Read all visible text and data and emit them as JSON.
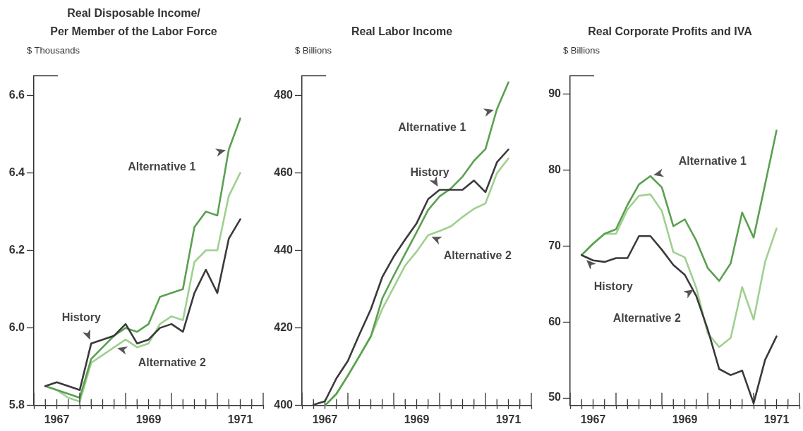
{
  "chart_data": [
    {
      "type": "line",
      "title": "Real Disposable Income/\nPer Member of the Labor Force",
      "ylabel": "$ Thousands",
      "x": [
        1967.25,
        1967.5,
        1967.75,
        1968,
        1968.25,
        1968.5,
        1968.75,
        1969,
        1969.25,
        1969.5,
        1969.75,
        1970,
        1970.25,
        1970.5,
        1970.75,
        1971,
        1971.25,
        1971.5
      ],
      "series": [
        {
          "name": "History",
          "color": "#3a3a3a",
          "values": [
            5.85,
            5.86,
            5.85,
            5.84,
            5.96,
            5.97,
            5.98,
            6.01,
            5.96,
            5.97,
            6.0,
            6.01,
            5.99,
            6.09,
            6.15,
            6.09,
            6.23,
            6.28
          ]
        },
        {
          "name": "Alternative 1",
          "color": "#5aa050",
          "values": [
            5.85,
            5.84,
            5.83,
            5.82,
            5.92,
            5.95,
            5.98,
            6.0,
            5.99,
            6.01,
            6.08,
            6.09,
            6.1,
            6.26,
            6.3,
            6.29,
            6.46,
            6.54
          ]
        },
        {
          "name": "Alternative 2",
          "color": "#9fd08f",
          "values": [
            5.85,
            5.84,
            5.82,
            5.81,
            5.91,
            5.93,
            5.95,
            5.97,
            5.95,
            5.96,
            6.01,
            6.03,
            6.02,
            6.17,
            6.2,
            6.2,
            6.34,
            6.4
          ]
        }
      ],
      "xlim": [
        1967,
        1972
      ],
      "xticks": [
        {
          "value": 1967,
          "label": null
        },
        {
          "value": 1967.25,
          "label": null
        },
        {
          "value": 1967.5,
          "label": "1967"
        },
        {
          "value": 1967.75,
          "label": null
        },
        {
          "value": 1968,
          "label": null
        },
        {
          "value": 1968.25,
          "label": null
        },
        {
          "value": 1968.5,
          "label": null
        },
        {
          "value": 1968.75,
          "label": null
        },
        {
          "value": 1969,
          "label": null
        },
        {
          "value": 1969.25,
          "label": null
        },
        {
          "value": 1969.5,
          "label": "1969"
        },
        {
          "value": 1969.75,
          "label": null
        },
        {
          "value": 1970,
          "label": null
        },
        {
          "value": 1970.25,
          "label": null
        },
        {
          "value": 1970.5,
          "label": null
        },
        {
          "value": 1970.75,
          "label": null
        },
        {
          "value": 1971,
          "label": null
        },
        {
          "value": 1971.25,
          "label": null
        },
        {
          "value": 1971.5,
          "label": "1971"
        },
        {
          "value": 1971.75,
          "label": null
        },
        {
          "value": 1972,
          "label": null
        }
      ],
      "ylim": [
        5.8,
        6.65
      ],
      "yticks": [
        5.8,
        {
          "value": 6,
          "label": "6.0"
        },
        6.2,
        6.4,
        6.6
      ],
      "legend": false,
      "marker": "none",
      "line_style": "solid"
    },
    {
      "type": "line",
      "title": "Real Labor Income",
      "ylabel": "$ Billions",
      "x": [
        1967.25,
        1967.5,
        1967.75,
        1968,
        1968.25,
        1968.5,
        1968.75,
        1969,
        1969.25,
        1969.5,
        1969.75,
        1970,
        1970.25,
        1970.5,
        1970.75,
        1971,
        1971.25,
        1971.5
      ],
      "series": [
        {
          "name": "History",
          "color": "#3a3a3a",
          "values": [
            400.2,
            401.1,
            407,
            411.5,
            418.3,
            424.8,
            433.1,
            438.4,
            442.8,
            447,
            453.2,
            455.6,
            455.6,
            455.6,
            458,
            455,
            462.7,
            466
          ]
        },
        {
          "name": "Alternative 1",
          "color": "#5aa050",
          "x": [
            1967.5,
            1967.75,
            1968,
            1968.25,
            1968.5,
            1968.75,
            1969,
            1969.25,
            1969.5,
            1969.75,
            1970,
            1970.25,
            1970.5,
            1970.75,
            1971,
            1971.25,
            1971.5
          ],
          "values": [
            400,
            403,
            407.7,
            412.7,
            417.8,
            427.6,
            433.5,
            439.1,
            444.7,
            450.4,
            453.9,
            456,
            459,
            463.1,
            466.1,
            476.4,
            483.3
          ]
        },
        {
          "name": "Alternative 2",
          "color": "#9fd08f",
          "x": [
            1967.5,
            1967.75,
            1968,
            1968.25,
            1968.5,
            1968.75,
            1969,
            1969.25,
            1969.5,
            1969.75,
            1970,
            1970.25,
            1970.5,
            1970.75,
            1971,
            1971.25,
            1971.5
          ],
          "values": [
            400,
            403,
            407.7,
            412.7,
            417.8,
            424.9,
            430.5,
            436.1,
            439.7,
            443.9,
            445,
            446.2,
            448.6,
            450.7,
            452.1,
            459.9,
            463.7
          ]
        }
      ],
      "xlim": [
        1967,
        1972
      ],
      "xticks": [
        {
          "value": 1967,
          "label": null
        },
        {
          "value": 1967.25,
          "label": null
        },
        {
          "value": 1967.5,
          "label": "1967"
        },
        {
          "value": 1967.75,
          "label": null
        },
        {
          "value": 1968,
          "label": null
        },
        {
          "value": 1968.25,
          "label": null
        },
        {
          "value": 1968.5,
          "label": null
        },
        {
          "value": 1968.75,
          "label": null
        },
        {
          "value": 1969,
          "label": null
        },
        {
          "value": 1969.25,
          "label": null
        },
        {
          "value": 1969.5,
          "label": "1969"
        },
        {
          "value": 1969.75,
          "label": null
        },
        {
          "value": 1970,
          "label": null
        },
        {
          "value": 1970.25,
          "label": null
        },
        {
          "value": 1970.5,
          "label": null
        },
        {
          "value": 1970.75,
          "label": null
        },
        {
          "value": 1971,
          "label": null
        },
        {
          "value": 1971.25,
          "label": null
        },
        {
          "value": 1971.5,
          "label": "1971"
        },
        {
          "value": 1971.75,
          "label": null
        },
        {
          "value": 1972,
          "label": null
        }
      ],
      "ylim": [
        400,
        485
      ],
      "yticks": [
        400,
        420,
        440,
        460,
        480
      ],
      "legend": false,
      "marker": "none",
      "line_style": "solid"
    },
    {
      "type": "line",
      "title": "Real Corporate Profits and IVA",
      "ylabel": "$ Billions",
      "x": [
        1967.25,
        1967.5,
        1967.75,
        1968,
        1968.25,
        1968.5,
        1968.75,
        1969,
        1969.25,
        1969.5,
        1969.75,
        1970,
        1970.25,
        1970.5,
        1970.75,
        1971,
        1971.25,
        1971.5
      ],
      "series": [
        {
          "name": "History",
          "color": "#3a3a3a",
          "values": [
            68.8,
            68.1,
            67.9,
            68.4,
            68.4,
            71.3,
            71.3,
            69.5,
            67.5,
            66.2,
            63.4,
            59.0,
            53.8,
            53.0,
            53.6,
            49.3,
            55.0,
            58.1
          ]
        },
        {
          "name": "Alternative 1",
          "color": "#5aa050",
          "values": [
            68.8,
            70.3,
            71.6,
            72.2,
            75.4,
            78.1,
            79.2,
            77.7,
            72.6,
            73.5,
            70.7,
            67.1,
            65.4,
            67.7,
            74.4,
            71.1,
            78.1,
            85.2
          ]
        },
        {
          "name": "Alternative 2",
          "color": "#9fd08f",
          "values": [
            68.8,
            70.3,
            71.6,
            71.6,
            74.8,
            76.6,
            76.8,
            74.6,
            69.2,
            68.5,
            64.5,
            58.5,
            56.7,
            57.9,
            64.6,
            60.3,
            67.9,
            72.3
          ]
        }
      ],
      "xlim": [
        1967,
        1972
      ],
      "xticks": [
        {
          "value": 1967,
          "label": null
        },
        {
          "value": 1967.25,
          "label": null
        },
        {
          "value": 1967.5,
          "label": "1967"
        },
        {
          "value": 1967.75,
          "label": null
        },
        {
          "value": 1968,
          "label": null
        },
        {
          "value": 1968.25,
          "label": null
        },
        {
          "value": 1968.5,
          "label": null
        },
        {
          "value": 1968.75,
          "label": null
        },
        {
          "value": 1969,
          "label": null
        },
        {
          "value": 1969.25,
          "label": null
        },
        {
          "value": 1969.5,
          "label": "1969"
        },
        {
          "value": 1969.75,
          "label": null
        },
        {
          "value": 1970,
          "label": null
        },
        {
          "value": 1970.25,
          "label": null
        },
        {
          "value": 1970.5,
          "label": null
        },
        {
          "value": 1970.75,
          "label": null
        },
        {
          "value": 1971,
          "label": null
        },
        {
          "value": 1971.25,
          "label": null
        },
        {
          "value": 1971.5,
          "label": "1971"
        },
        {
          "value": 1971.75,
          "label": null
        },
        {
          "value": 1972,
          "label": null
        }
      ],
      "ylim": [
        49,
        92.4
      ],
      "yticks": [
        50,
        60,
        70,
        80,
        90
      ],
      "legend": false,
      "marker": "none",
      "line_style": "solid"
    }
  ]
}
